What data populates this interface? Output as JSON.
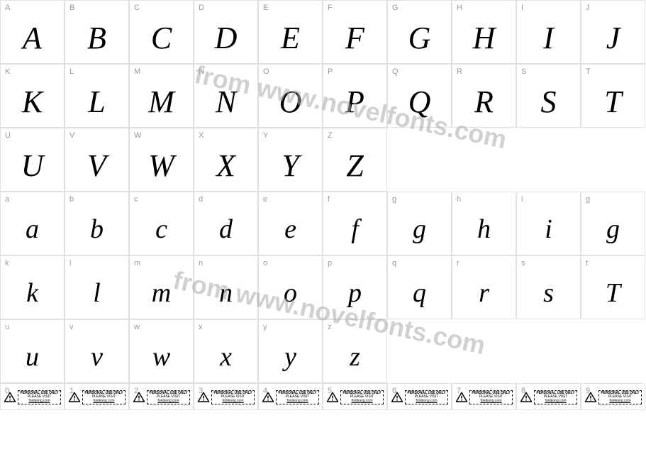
{
  "watermark_text": "from www.novelfonts.com",
  "watermark_color": "#b0b0b0",
  "grid_border_color": "#e0e0e0",
  "label_color": "#999999",
  "glyph_color": "#000000",
  "rows": [
    {
      "type": "upper",
      "cells": [
        {
          "label": "A",
          "glyph": "A"
        },
        {
          "label": "B",
          "glyph": "B"
        },
        {
          "label": "C",
          "glyph": "C"
        },
        {
          "label": "D",
          "glyph": "D"
        },
        {
          "label": "E",
          "glyph": "E"
        },
        {
          "label": "F",
          "glyph": "F"
        },
        {
          "label": "G",
          "glyph": "G"
        },
        {
          "label": "H",
          "glyph": "H"
        },
        {
          "label": "I",
          "glyph": "I"
        },
        {
          "label": "J",
          "glyph": "J"
        }
      ]
    },
    {
      "type": "upper",
      "cells": [
        {
          "label": "K",
          "glyph": "K"
        },
        {
          "label": "L",
          "glyph": "L"
        },
        {
          "label": "M",
          "glyph": "M"
        },
        {
          "label": "N",
          "glyph": "N"
        },
        {
          "label": "O",
          "glyph": "O"
        },
        {
          "label": "P",
          "glyph": "P"
        },
        {
          "label": "Q",
          "glyph": "Q"
        },
        {
          "label": "R",
          "glyph": "R"
        },
        {
          "label": "S",
          "glyph": "S"
        },
        {
          "label": "T",
          "glyph": "T"
        }
      ]
    },
    {
      "type": "upper",
      "cells": [
        {
          "label": "U",
          "glyph": "U"
        },
        {
          "label": "V",
          "glyph": "V"
        },
        {
          "label": "W",
          "glyph": "W"
        },
        {
          "label": "X",
          "glyph": "X"
        },
        {
          "label": "Y",
          "glyph": "Y"
        },
        {
          "label": "Z",
          "glyph": "Z"
        },
        {
          "label": "",
          "glyph": ""
        },
        {
          "label": "",
          "glyph": ""
        },
        {
          "label": "",
          "glyph": ""
        },
        {
          "label": "",
          "glyph": ""
        }
      ]
    },
    {
      "type": "lower",
      "cells": [
        {
          "label": "a",
          "glyph": "a"
        },
        {
          "label": "b",
          "glyph": "b"
        },
        {
          "label": "c",
          "glyph": "c"
        },
        {
          "label": "d",
          "glyph": "d"
        },
        {
          "label": "e",
          "glyph": "e"
        },
        {
          "label": "f",
          "glyph": "f"
        },
        {
          "label": "g",
          "glyph": "g"
        },
        {
          "label": "h",
          "glyph": "h"
        },
        {
          "label": "i",
          "glyph": "i"
        },
        {
          "label": "g",
          "glyph": "g"
        }
      ]
    },
    {
      "type": "lower",
      "cells": [
        {
          "label": "k",
          "glyph": "k"
        },
        {
          "label": "l",
          "glyph": "l"
        },
        {
          "label": "m",
          "glyph": "m"
        },
        {
          "label": "n",
          "glyph": "n"
        },
        {
          "label": "o",
          "glyph": "o"
        },
        {
          "label": "p",
          "glyph": "p"
        },
        {
          "label": "q",
          "glyph": "q"
        },
        {
          "label": "r",
          "glyph": "r"
        },
        {
          "label": "s",
          "glyph": "s"
        },
        {
          "label": "t",
          "glyph": "T"
        }
      ]
    },
    {
      "type": "lower",
      "cells": [
        {
          "label": "u",
          "glyph": "u"
        },
        {
          "label": "v",
          "glyph": "v"
        },
        {
          "label": "w",
          "glyph": "w"
        },
        {
          "label": "x",
          "glyph": "x"
        },
        {
          "label": "y",
          "glyph": "y"
        },
        {
          "label": "z",
          "glyph": "z"
        },
        {
          "label": "",
          "glyph": ""
        },
        {
          "label": "",
          "glyph": ""
        },
        {
          "label": "",
          "glyph": ""
        },
        {
          "label": "",
          "glyph": ""
        }
      ]
    }
  ],
  "num_row": {
    "labels": [
      "0",
      "1",
      "2",
      "3",
      "4",
      "5",
      "6",
      "7",
      "8",
      "9"
    ],
    "warning": {
      "line1": "PERSONAL USE ONLY",
      "line2": "PLEASE VISIT",
      "line3": "fontkong.com"
    }
  }
}
